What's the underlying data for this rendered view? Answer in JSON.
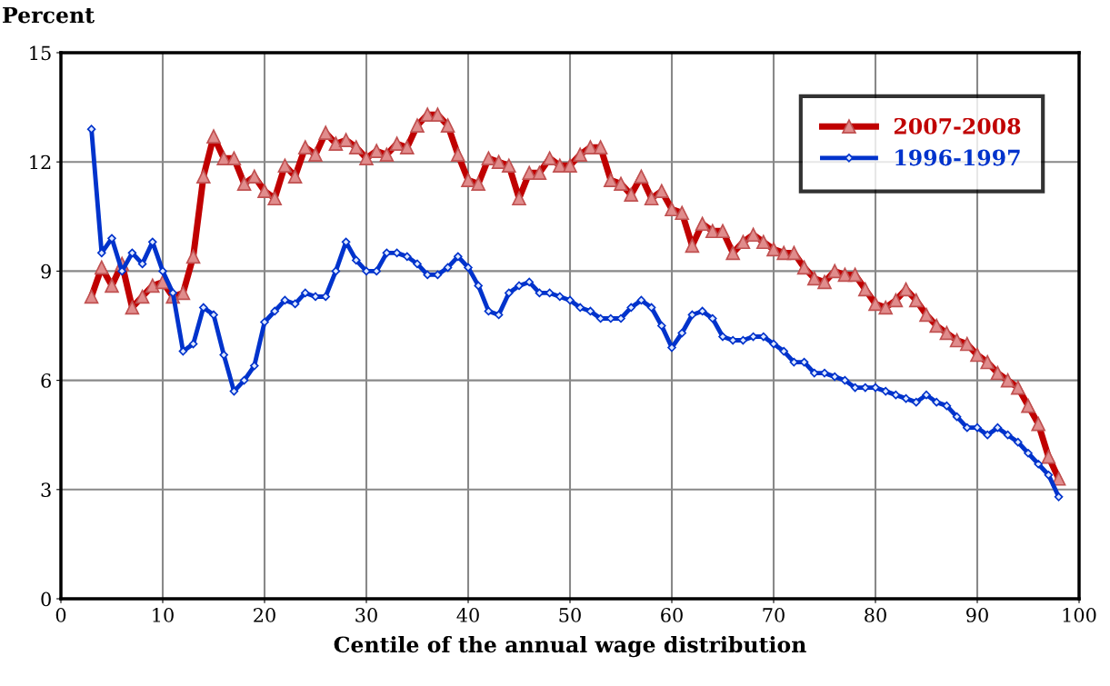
{
  "chart_data": {
    "type": "line",
    "ylabel": "Percent",
    "xlabel": "Centile of the annual wage distribution",
    "x": [
      3,
      4,
      5,
      6,
      7,
      8,
      9,
      10,
      11,
      12,
      13,
      14,
      15,
      16,
      17,
      18,
      19,
      20,
      21,
      22,
      23,
      24,
      25,
      26,
      27,
      28,
      29,
      30,
      31,
      32,
      33,
      34,
      35,
      36,
      37,
      38,
      39,
      40,
      41,
      42,
      43,
      44,
      45,
      46,
      47,
      48,
      49,
      50,
      51,
      52,
      53,
      54,
      55,
      56,
      57,
      58,
      59,
      60,
      61,
      62,
      63,
      64,
      65,
      66,
      67,
      68,
      69,
      70,
      71,
      72,
      73,
      74,
      75,
      76,
      77,
      78,
      79,
      80,
      81,
      82,
      83,
      84,
      85,
      86,
      87,
      88,
      89,
      90,
      91,
      92,
      93,
      94,
      95,
      96,
      97,
      98
    ],
    "series": [
      {
        "name": "2007-2008",
        "color": "#c00000",
        "marker": "triangle",
        "values": [
          8.3,
          9.1,
          8.6,
          9.2,
          8.0,
          8.3,
          8.6,
          8.7,
          8.3,
          8.4,
          9.4,
          11.6,
          12.7,
          12.1,
          12.1,
          11.4,
          11.6,
          11.2,
          11.0,
          11.9,
          11.6,
          12.4,
          12.2,
          12.8,
          12.5,
          12.6,
          12.4,
          12.1,
          12.3,
          12.2,
          12.5,
          12.4,
          13.0,
          13.3,
          13.3,
          13.0,
          12.2,
          11.5,
          11.4,
          12.1,
          12.0,
          11.9,
          11.0,
          11.7,
          11.7,
          12.1,
          11.9,
          11.9,
          12.2,
          12.4,
          12.4,
          11.5,
          11.4,
          11.1,
          11.6,
          11.0,
          11.2,
          10.7,
          10.6,
          9.7,
          10.3,
          10.1,
          10.1,
          9.5,
          9.8,
          10.0,
          9.8,
          9.6,
          9.5,
          9.5,
          9.1,
          8.8,
          8.7,
          9.0,
          8.9,
          8.9,
          8.5,
          8.1,
          8.0,
          8.2,
          8.5,
          8.2,
          7.8,
          7.5,
          7.3,
          7.1,
          7.0,
          6.7,
          6.5,
          6.2,
          6.0,
          5.8,
          5.3,
          4.8,
          3.9,
          3.3
        ]
      },
      {
        "name": "1996-1997",
        "color": "#0033cc",
        "marker": "diamond",
        "values": [
          12.9,
          9.5,
          9.9,
          9.0,
          9.5,
          9.2,
          9.8,
          9.0,
          8.4,
          6.8,
          7.0,
          8.0,
          7.8,
          6.7,
          5.7,
          6.0,
          6.4,
          7.6,
          7.9,
          8.2,
          8.1,
          8.4,
          8.3,
          8.3,
          9.0,
          9.8,
          9.3,
          9.0,
          9.0,
          9.5,
          9.5,
          9.4,
          9.2,
          8.9,
          8.9,
          9.1,
          9.4,
          9.1,
          8.6,
          7.9,
          7.8,
          8.4,
          8.6,
          8.7,
          8.4,
          8.4,
          8.3,
          8.2,
          8.0,
          7.9,
          7.7,
          7.7,
          7.7,
          8.0,
          8.2,
          8.0,
          7.5,
          6.9,
          7.3,
          7.8,
          7.9,
          7.7,
          7.2,
          7.1,
          7.1,
          7.2,
          7.2,
          7.0,
          6.8,
          6.5,
          6.5,
          6.2,
          6.2,
          6.1,
          6.0,
          5.8,
          5.8,
          5.8,
          5.7,
          5.6,
          5.5,
          5.4,
          5.6,
          5.4,
          5.3,
          5.0,
          4.7,
          4.7,
          4.5,
          4.7,
          4.5,
          4.3,
          4.0,
          3.7,
          3.4,
          2.8
        ]
      }
    ],
    "xlim": [
      0,
      100
    ],
    "xticks": [
      0,
      10,
      20,
      30,
      40,
      50,
      60,
      70,
      80,
      90,
      100
    ],
    "ylim": [
      0,
      15
    ],
    "yticks": [
      0,
      3,
      6,
      9,
      12,
      15
    ],
    "grid": true,
    "legend": "top right",
    "line_style": "solid"
  }
}
